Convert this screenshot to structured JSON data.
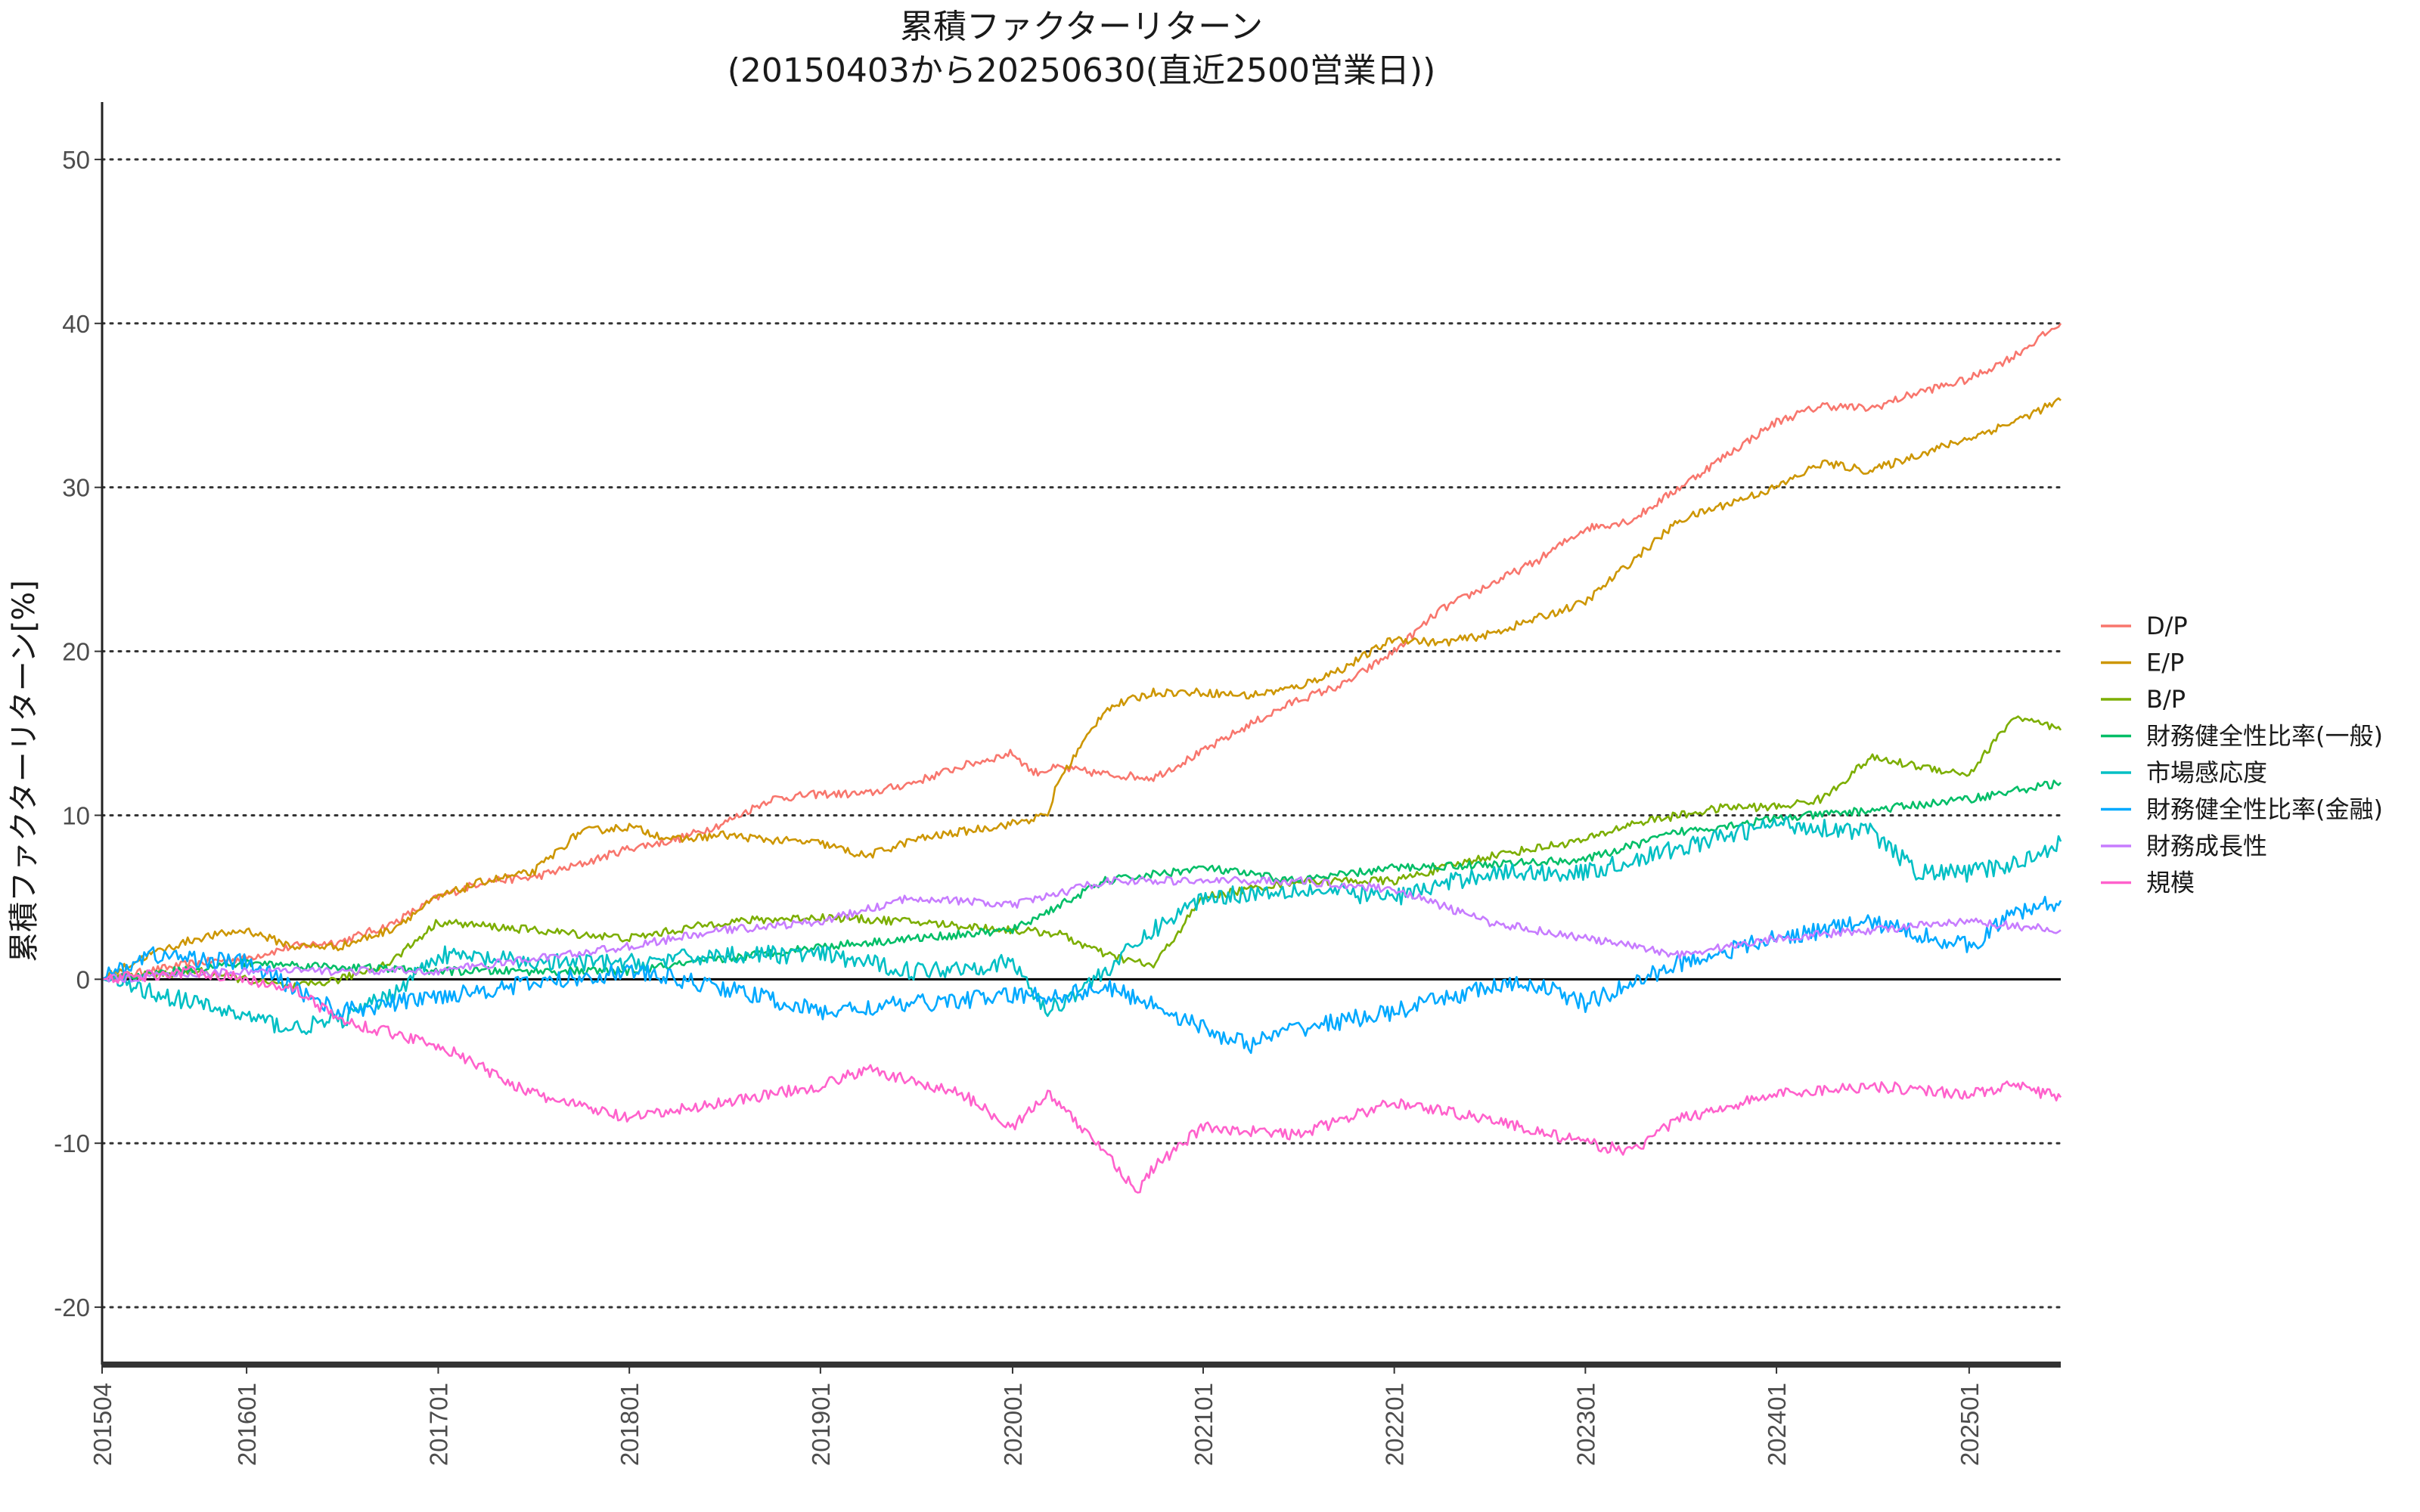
{
  "chart_data": {
    "type": "line",
    "title": "累積ファクターリターン",
    "subtitle": "(20150403から20250630(直近2500営業日))",
    "xlabel": "",
    "ylabel": "累積ファクターリターン[%]",
    "x_tick_labels": [
      "201504",
      "201601",
      "201701",
      "201801",
      "201901",
      "202001",
      "202101",
      "202201",
      "202301",
      "202401",
      "202501"
    ],
    "x_ticks": [
      "2015-04-03",
      "2016-01-04",
      "2017-01-04",
      "2018-01-04",
      "2019-01-04",
      "2020-01-06",
      "2021-01-04",
      "2022-01-04",
      "2023-01-04",
      "2024-01-04",
      "2025-01-06"
    ],
    "xlim": [
      "2015-04-03",
      "2025-06-30"
    ],
    "ylim": [
      -23.5,
      53.5
    ],
    "y_ticks": [
      -20,
      -10,
      0,
      10,
      20,
      30,
      40,
      50
    ],
    "grid": "horizontal dotted",
    "legend_position": "right",
    "series": [
      {
        "name": "D/P",
        "color": "#F8766D",
        "x": [
          "2015-04-03",
          "2015-07-01",
          "2015-10-01",
          "2016-01-04",
          "2016-04-01",
          "2016-07-01",
          "2016-10-03",
          "2017-01-04",
          "2017-04-03",
          "2017-07-03",
          "2017-10-02",
          "2018-01-04",
          "2018-04-02",
          "2018-07-02",
          "2018-10-01",
          "2019-01-04",
          "2019-04-01",
          "2019-07-01",
          "2019-10-01",
          "2020-01-06",
          "2020-02-15",
          "2020-04-01",
          "2020-07-01",
          "2020-10-01",
          "2021-01-04",
          "2021-04-01",
          "2021-07-01",
          "2021-10-01",
          "2022-01-04",
          "2022-04-01",
          "2022-07-01",
          "2022-10-03",
          "2023-01-04",
          "2023-04-03",
          "2023-07-03",
          "2023-10-02",
          "2024-01-04",
          "2024-04-01",
          "2024-07-01",
          "2024-10-01",
          "2025-01-06",
          "2025-04-01",
          "2025-06-30"
        ],
        "values": [
          0,
          0.5,
          1.0,
          1.3,
          2.0,
          2.3,
          3.3,
          5.0,
          6.0,
          6.2,
          7.0,
          8.0,
          8.5,
          9.5,
          11.0,
          11.3,
          11.3,
          12.0,
          13.0,
          13.8,
          12.6,
          12.9,
          12.5,
          12.3,
          13.9,
          15.5,
          17.0,
          18.0,
          20.0,
          22.5,
          24.0,
          25.5,
          27.5,
          28.0,
          30.0,
          32.0,
          34.0,
          35.0,
          34.8,
          35.8,
          36.6,
          38.0,
          40.0
        ]
      },
      {
        "name": "E/P",
        "color": "#CD9600",
        "x": [
          "2015-04-03",
          "2015-07-01",
          "2015-10-01",
          "2016-01-04",
          "2016-04-01",
          "2016-07-01",
          "2016-10-03",
          "2017-01-04",
          "2017-04-03",
          "2017-07-03",
          "2017-10-02",
          "2018-01-04",
          "2018-04-02",
          "2018-07-02",
          "2018-10-01",
          "2019-01-04",
          "2019-04-01",
          "2019-07-01",
          "2019-10-01",
          "2020-01-06",
          "2020-03-13",
          "2020-04-01",
          "2020-07-01",
          "2020-10-01",
          "2021-01-04",
          "2021-04-01",
          "2021-07-01",
          "2021-10-01",
          "2022-01-04",
          "2022-04-01",
          "2022-07-01",
          "2022-10-03",
          "2023-01-04",
          "2023-04-03",
          "2023-07-03",
          "2023-10-02",
          "2024-01-04",
          "2024-04-01",
          "2024-07-01",
          "2024-10-01",
          "2025-01-06",
          "2025-04-01",
          "2025-06-30"
        ],
        "values": [
          0,
          1.5,
          2.5,
          3.0,
          2.0,
          2.0,
          3.0,
          5.0,
          6.0,
          6.5,
          9.0,
          9.3,
          8.5,
          8.8,
          8.5,
          8.3,
          7.5,
          8.5,
          9.0,
          9.5,
          10.0,
          12.0,
          16.5,
          17.5,
          17.5,
          17.3,
          17.8,
          19.0,
          20.8,
          20.5,
          21.0,
          22.0,
          23.0,
          25.5,
          28.0,
          29.0,
          30.0,
          31.5,
          31.0,
          32.0,
          33.0,
          34.0,
          35.3
        ]
      },
      {
        "name": "B/P",
        "color": "#7CAE00",
        "x": [
          "2015-04-03",
          "2015-10-01",
          "2016-04-01",
          "2016-07-01",
          "2016-10-03",
          "2017-01-04",
          "2017-07-03",
          "2018-01-04",
          "2018-07-02",
          "2019-01-04",
          "2019-07-01",
          "2020-01-06",
          "2020-04-01",
          "2020-07-01",
          "2020-10-01",
          "2021-01-04",
          "2021-07-01",
          "2022-01-04",
          "2022-07-01",
          "2023-01-04",
          "2023-04-03",
          "2023-10-02",
          "2024-01-04",
          "2024-04-01",
          "2024-07-01",
          "2024-10-01",
          "2025-01-06",
          "2025-04-01",
          "2025-06-30"
        ],
        "values": [
          0,
          0.5,
          -0.5,
          0.0,
          1.0,
          3.5,
          3.0,
          2.5,
          3.5,
          3.8,
          3.5,
          3.0,
          2.8,
          1.5,
          0.8,
          5.0,
          6.0,
          6.0,
          7.5,
          8.5,
          9.5,
          10.5,
          10.5,
          11.0,
          13.5,
          13.0,
          12.5,
          16.0,
          15.2
        ]
      },
      {
        "name": "財務健全性比率(一般)",
        "color": "#00BE67",
        "x": [
          "2015-04-03",
          "2016-01-04",
          "2017-01-04",
          "2018-01-04",
          "2019-01-04",
          "2020-01-06",
          "2020-07-01",
          "2021-01-04",
          "2021-07-01",
          "2022-01-04",
          "2022-07-01",
          "2023-01-04",
          "2023-07-03",
          "2024-01-04",
          "2024-07-01",
          "2025-01-06",
          "2025-06-30"
        ],
        "values": [
          0,
          1.0,
          0.5,
          0.5,
          2.0,
          3.0,
          6.0,
          6.8,
          6.0,
          6.8,
          7.0,
          7.3,
          9.0,
          9.8,
          10.3,
          11.0,
          12.0
        ]
      },
      {
        "name": "市場感応度",
        "color": "#00BFC4",
        "x": [
          "2015-04-03",
          "2015-10-01",
          "2016-04-01",
          "2016-07-01",
          "2016-10-03",
          "2017-01-04",
          "2017-07-03",
          "2018-01-04",
          "2018-07-02",
          "2019-01-04",
          "2019-07-01",
          "2020-01-06",
          "2020-03-13",
          "2020-07-01",
          "2020-10-01",
          "2021-01-04",
          "2021-07-01",
          "2022-01-04",
          "2022-07-01",
          "2023-01-04",
          "2023-07-03",
          "2024-01-04",
          "2024-07-01",
          "2024-10-01",
          "2025-01-06",
          "2025-04-01",
          "2025-06-30"
        ],
        "values": [
          0,
          -1.5,
          -3.0,
          -2.5,
          -1.0,
          1.5,
          1.0,
          1.0,
          1.5,
          1.5,
          0.5,
          1.0,
          -2.0,
          0.5,
          3.0,
          5.0,
          5.5,
          5.0,
          6.5,
          6.5,
          8.0,
          9.5,
          9.0,
          6.5,
          6.5,
          7.0,
          8.4
        ]
      },
      {
        "name": "財務健全性比率(金融)",
        "color": "#00A9FF",
        "x": [
          "2015-04-03",
          "2015-07-01",
          "2016-01-04",
          "2016-07-01",
          "2017-01-04",
          "2018-01-04",
          "2018-07-02",
          "2019-01-04",
          "2019-07-01",
          "2020-01-06",
          "2020-04-01",
          "2020-07-01",
          "2020-10-01",
          "2021-01-04",
          "2021-04-01",
          "2021-07-01",
          "2022-01-04",
          "2022-07-01",
          "2022-10-03",
          "2023-01-04",
          "2023-07-03",
          "2024-01-04",
          "2024-04-01",
          "2024-07-01",
          "2025-01-06",
          "2025-04-01",
          "2025-06-30"
        ],
        "values": [
          0,
          1.5,
          1.0,
          -2.0,
          -1.0,
          0.5,
          -0.5,
          -2.0,
          -1.5,
          -1.0,
          -1.0,
          -0.5,
          -1.5,
          -3.0,
          -4.0,
          -3.0,
          -2.0,
          -0.5,
          -0.3,
          -1.5,
          1.0,
          2.5,
          3.0,
          3.5,
          2.0,
          4.0,
          4.8
        ]
      },
      {
        "name": "財務成長性",
        "color": "#C77CFF",
        "x": [
          "2015-04-03",
          "2016-01-04",
          "2017-01-04",
          "2018-01-04",
          "2018-07-02",
          "2019-01-04",
          "2019-07-01",
          "2020-01-06",
          "2020-07-01",
          "2021-01-04",
          "2021-07-01",
          "2022-01-04",
          "2022-07-01",
          "2023-01-04",
          "2023-07-03",
          "2024-01-04",
          "2024-07-01",
          "2025-01-06",
          "2025-06-30"
        ],
        "values": [
          0,
          0.5,
          0.5,
          2.0,
          3.0,
          3.5,
          5.0,
          4.5,
          6.0,
          6.0,
          6.0,
          5.5,
          3.5,
          2.5,
          1.5,
          2.5,
          3.0,
          3.5,
          3.0
        ]
      },
      {
        "name": "規模",
        "color": "#FF61CC",
        "x": [
          "2015-04-03",
          "2015-10-01",
          "2016-04-01",
          "2016-07-01",
          "2017-01-04",
          "2017-07-03",
          "2018-01-04",
          "2018-07-02",
          "2019-01-04",
          "2019-04-01",
          "2019-10-01",
          "2020-01-06",
          "2020-03-13",
          "2020-07-01",
          "2020-09-01",
          "2020-10-01",
          "2021-01-04",
          "2021-07-01",
          "2022-01-04",
          "2022-07-01",
          "2023-01-04",
          "2023-04-03",
          "2023-07-03",
          "2024-01-04",
          "2024-07-01",
          "2025-01-06",
          "2025-04-01",
          "2025-06-30"
        ],
        "values": [
          0,
          0.5,
          -0.5,
          -2.5,
          -4.0,
          -7.0,
          -8.5,
          -7.5,
          -6.5,
          -5.5,
          -7.0,
          -9.0,
          -7.0,
          -10.5,
          -13.0,
          -11.5,
          -9.0,
          -9.5,
          -7.5,
          -8.5,
          -10.0,
          -10.5,
          -8.5,
          -7.0,
          -6.5,
          -7.0,
          -6.5,
          -7.2
        ]
      }
    ]
  }
}
